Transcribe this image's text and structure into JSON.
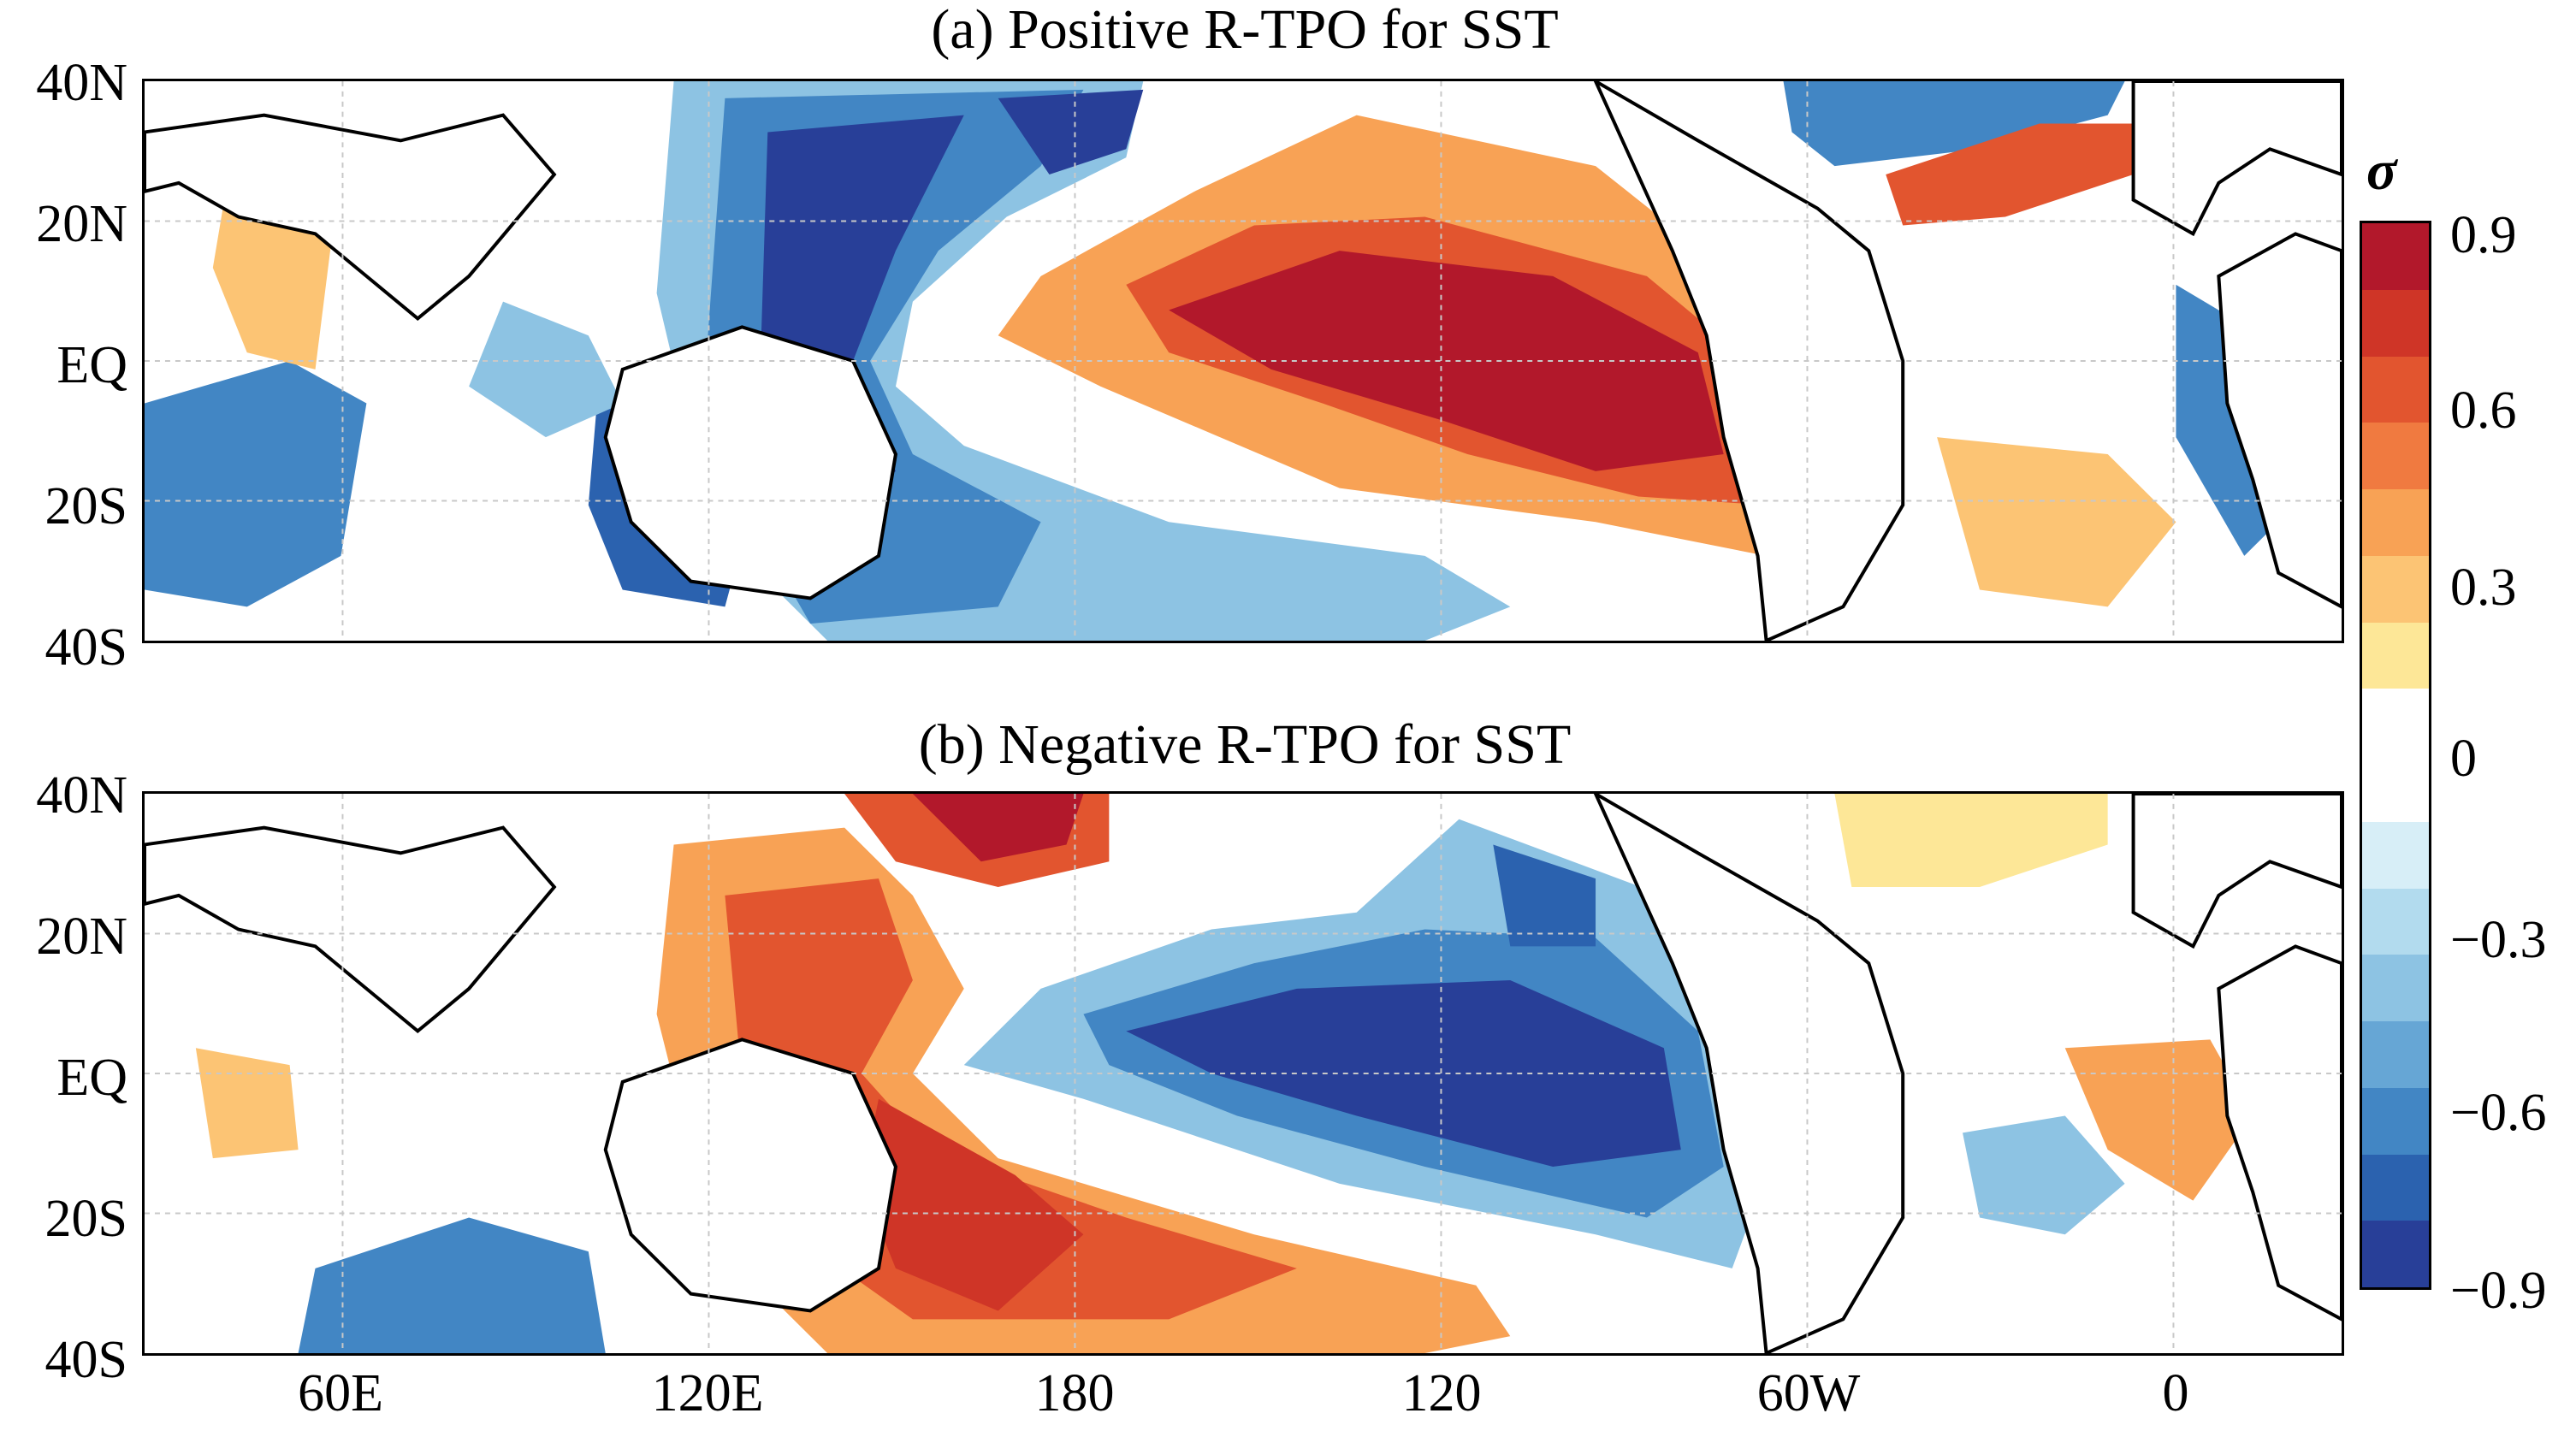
{
  "panels": [
    {
      "id": "a",
      "title": "(a) Positive R-TPO for SST"
    },
    {
      "id": "b",
      "title": "(b) Negative R-TPO for SST"
    }
  ],
  "lat_labels": [
    "40N",
    "20N",
    "EQ",
    "20S",
    "40S"
  ],
  "lon_labels": [
    "60E",
    "120E",
    "180",
    "120",
    "60W",
    "0"
  ],
  "colorbar": {
    "unit": "σ",
    "ticks": [
      "0.9",
      "0.6",
      "0.3",
      "0",
      "−0.3",
      "−0.6",
      "−0.9"
    ],
    "colors": [
      "#b2182b",
      "#cf3527",
      "#e2552f",
      "#f07a40",
      "#f8a255",
      "#fcc474",
      "#fde797",
      "#ffffff",
      "#ffffff",
      "#d7eef7",
      "#b2dbee",
      "#8dc3e3",
      "#66a6d5",
      "#4286c4",
      "#2b62af",
      "#283f98"
    ]
  },
  "colors": {
    "land_outline": "#000000",
    "grid": "#c8c8c8"
  }
}
